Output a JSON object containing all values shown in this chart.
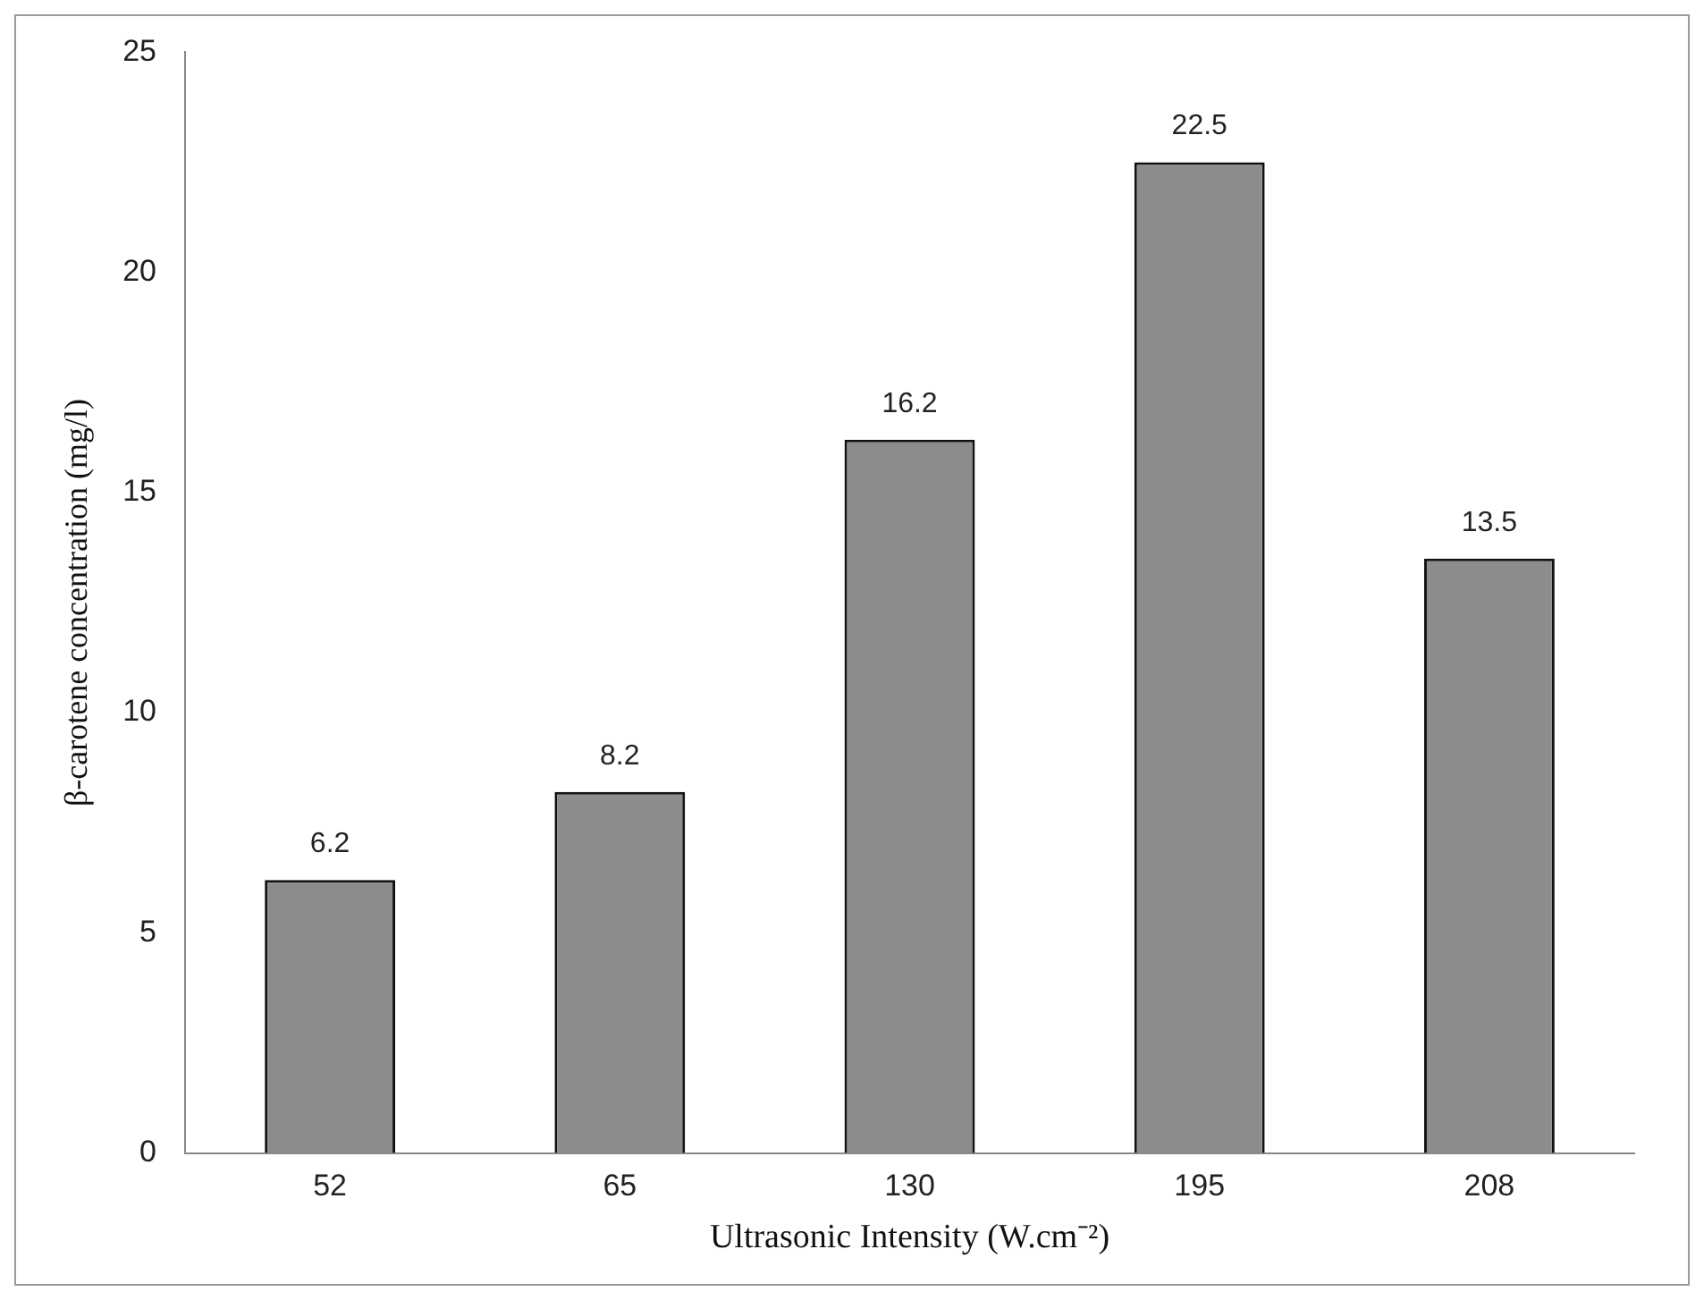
{
  "chart_data": {
    "type": "bar",
    "xlabel": "Ultrasonic Intensity (W.cm⁻²)",
    "ylabel": "β-carotene concentration (mg/l)",
    "categories": [
      "52",
      "65",
      "130",
      "195",
      "208"
    ],
    "values": [
      6.2,
      8.2,
      16.2,
      22.5,
      13.5
    ],
    "color": "#8c8c8c",
    "ylim": [
      0,
      25
    ],
    "yticks": [
      0,
      5,
      10,
      15,
      20,
      25
    ],
    "grid": false,
    "legend": false,
    "data_labels": true
  }
}
